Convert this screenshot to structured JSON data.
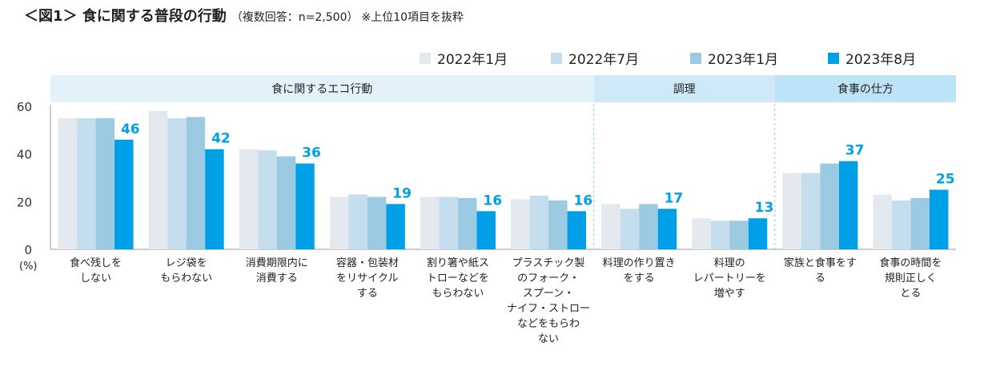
{
  "title": {
    "main": "＜図1＞ 食に関する普段の行動",
    "sub": "（複数回答：n=2,500）",
    "note": "※上位10項目を抜粋"
  },
  "chart_data": {
    "type": "bar",
    "y_unit_label": "(%)",
    "ylim": [
      0,
      60
    ],
    "yticks": [
      0,
      20,
      40,
      60
    ],
    "legend_position": "top-right",
    "categories": [
      "食べ残しを\nしない",
      "レジ袋を\nもらわない",
      "消費期限内に\n消費する",
      "容器・包装材\nをリサイクル\nする",
      "割り箸や紙ス\nトローなどを\nもらわない",
      "プラスチック製\nのフォーク・\nスプーン・\nナイフ・ストロー\nなどをもらわ\nない",
      "料理の作り置き\nをする",
      "料理の\nレパートリーを\n増やす",
      "家族と食事をす\nる",
      "食事の時間を\n規則正しく\nとる"
    ],
    "groups": [
      {
        "label": "食に関するエコ行動",
        "start": 0,
        "end": 5,
        "color": "#e3f1fb"
      },
      {
        "label": "調理",
        "start": 6,
        "end": 7,
        "color": "#d0e9f8"
      },
      {
        "label": "食事の仕方",
        "start": 8,
        "end": 9,
        "color": "#bde3f6"
      }
    ],
    "series": [
      {
        "name": "2022年1月",
        "color": "#e4e9ef",
        "values": [
          55,
          58,
          42,
          22,
          22,
          21,
          19,
          13,
          32,
          23
        ]
      },
      {
        "name": "2022年7月",
        "color": "#c4deee",
        "values": [
          55,
          55,
          41.5,
          23,
          22,
          22.5,
          17,
          12,
          32,
          20.5
        ]
      },
      {
        "name": "2023年1月",
        "color": "#9dcae3",
        "values": [
          55,
          55.5,
          39,
          22,
          21.5,
          20.5,
          19,
          12,
          36,
          21.5
        ]
      },
      {
        "name": "2023年8月",
        "color": "#00a0e9",
        "values": [
          46,
          42,
          36,
          19,
          16,
          16,
          17,
          13,
          37,
          25
        ]
      }
    ],
    "data_labels": [
      "46",
      "42",
      "36",
      "19",
      "16",
      "16",
      "17",
      "13",
      "37",
      "25"
    ],
    "data_label_color": "#00a0e9"
  }
}
